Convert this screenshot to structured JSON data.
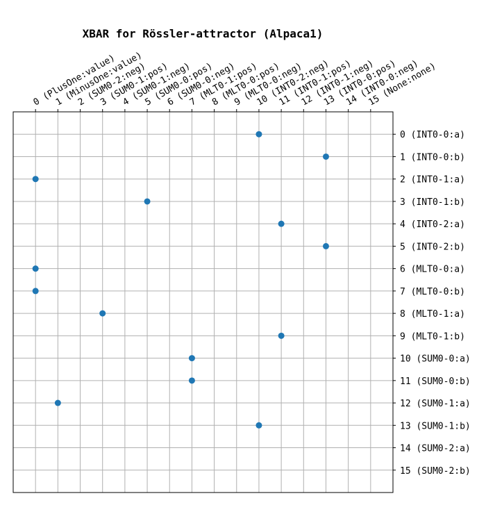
{
  "chart_data": {
    "type": "scatter",
    "title": "XBAR for Rössler-attractor (Alpaca1)",
    "xlabel": "",
    "ylabel": "",
    "grid": true,
    "x_axis_position": "top",
    "y_axis_position": "right",
    "y_inverted": true,
    "xlim": [
      -1,
      16
    ],
    "ylim": [
      -1,
      16
    ],
    "x_tick_labels": [
      "0 (PlusOne:value)",
      "1 (MinusOne:value)",
      "2 (SUM0-2:neg)",
      "3 (SUM0-1:pos)",
      "4 (SUM0-1:neg)",
      "5 (SUM0-0:pos)",
      "6 (SUM0-0:neg)",
      "7 (MLT0-1:pos)",
      "8 (MLT0-0:pos)",
      "9 (MLT0-0:neg)",
      "10 (INT0-2:neg)",
      "11 (INT0-1:pos)",
      "12 (INT0-1:neg)",
      "13 (INT0-0:pos)",
      "14 (INT0-0:neg)",
      "15 (None:none)"
    ],
    "y_tick_labels": [
      "0 (INT0-0:a)",
      "1 (INT0-0:b)",
      "2 (INT0-1:a)",
      "3 (INT0-1:b)",
      "4 (INT0-2:a)",
      "5 (INT0-2:b)",
      "6 (MLT0-0:a)",
      "7 (MLT0-0:b)",
      "8 (MLT0-1:a)",
      "9 (MLT0-1:b)",
      "10 (SUM0-0:a)",
      "11 (SUM0-0:b)",
      "12 (SUM0-1:a)",
      "13 (SUM0-1:b)",
      "14 (SUM0-2:a)",
      "15 (SUM0-2:b)"
    ],
    "points": [
      {
        "x": 10,
        "y": 0
      },
      {
        "x": 13,
        "y": 1
      },
      {
        "x": 0,
        "y": 2
      },
      {
        "x": 5,
        "y": 3
      },
      {
        "x": 11,
        "y": 4
      },
      {
        "x": 13,
        "y": 5
      },
      {
        "x": 0,
        "y": 6
      },
      {
        "x": 0,
        "y": 7
      },
      {
        "x": 3,
        "y": 8
      },
      {
        "x": 11,
        "y": 9
      },
      {
        "x": 7,
        "y": 10
      },
      {
        "x": 7,
        "y": 11
      },
      {
        "x": 1,
        "y": 12
      },
      {
        "x": 10,
        "y": 13
      }
    ],
    "colors": {
      "points": "#1f77b4",
      "grid": "#b0b0b0"
    }
  }
}
